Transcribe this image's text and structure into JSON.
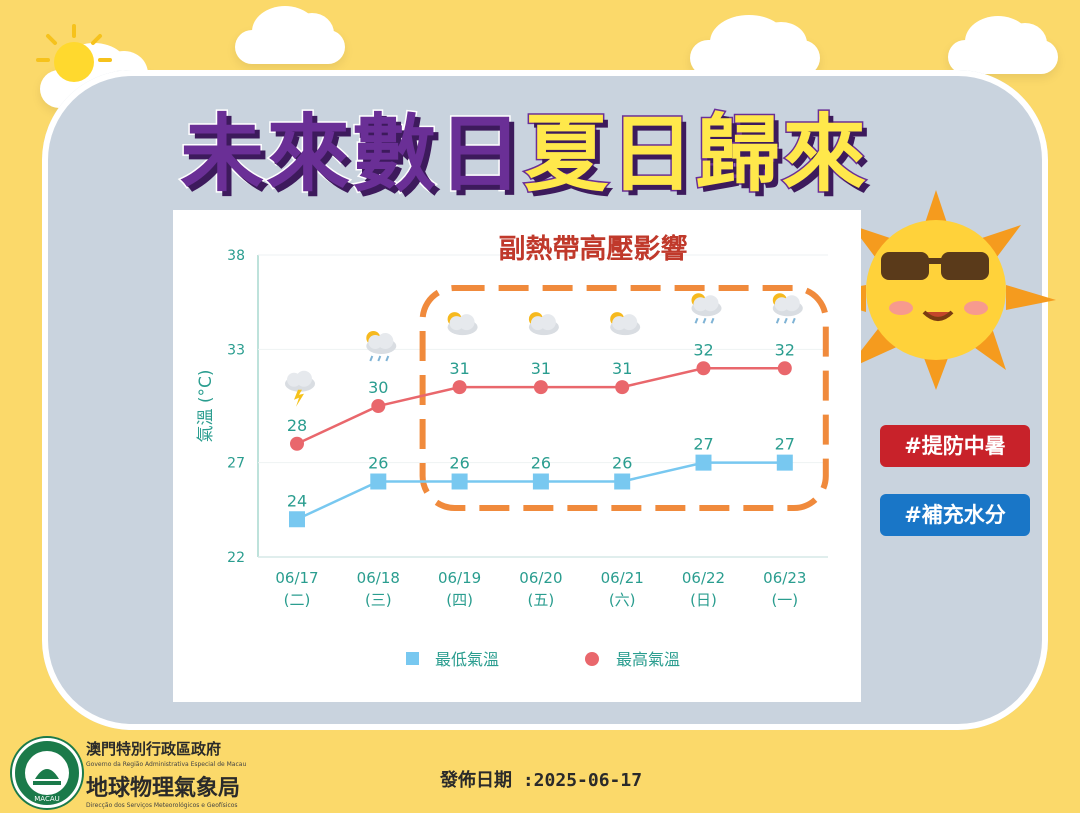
{
  "title": {
    "part1": "未來數日",
    "part2": "夏日歸來"
  },
  "tags": {
    "heat": "#提防中暑",
    "water": "#補充水分"
  },
  "footer": {
    "gov_name": "澳門特別行政區政府",
    "gov_pt": "Governo da Região Administrativa Especial de Macau",
    "bureau_name": "地球物理氣象局",
    "bureau_pt": "Direcção dos Serviços Meteorológicos e Geofísicos",
    "emblem_text": "MACAU",
    "issue_label": "發佈日期",
    "issue_date": ":2025-06-17"
  },
  "colors": {
    "background": "#fbd96a",
    "panel": "#c9d3de",
    "max_series": "#e9676c",
    "min_series": "#78c8f0",
    "axis_text": "#2a9d8f",
    "highlight_box": "#f08a3c",
    "annotation_text": "#c0392b"
  },
  "chart_data": {
    "type": "line",
    "annotation": "副熱帶高壓影響",
    "ylabel": "氣溫 (°C)",
    "ylim": [
      22,
      38
    ],
    "yticks": [
      22,
      27,
      33,
      38
    ],
    "categories": [
      "06/17",
      "06/18",
      "06/19",
      "06/20",
      "06/21",
      "06/22",
      "06/23"
    ],
    "weekdays": [
      "(二)",
      "(三)",
      "(四)",
      "(五)",
      "(六)",
      "(日)",
      "(一)"
    ],
    "weather_icons": [
      "thunderstorm-icon",
      "sun-cloud-rain-icon",
      "sun-cloud-icon",
      "sun-cloud-icon",
      "sun-cloud-icon",
      "sun-cloud-rain-icon",
      "sun-cloud-rain-icon"
    ],
    "series": [
      {
        "name": "最低氣溫",
        "marker": "square",
        "color": "#78c8f0",
        "values": [
          24,
          26,
          26,
          26,
          26,
          27,
          27
        ]
      },
      {
        "name": "最高氣溫",
        "marker": "circle",
        "color": "#e9676c",
        "values": [
          28,
          30,
          31,
          31,
          31,
          32,
          32
        ]
      }
    ],
    "highlight_range": [
      "06/19",
      "06/23"
    ],
    "legend_position": "bottom"
  }
}
